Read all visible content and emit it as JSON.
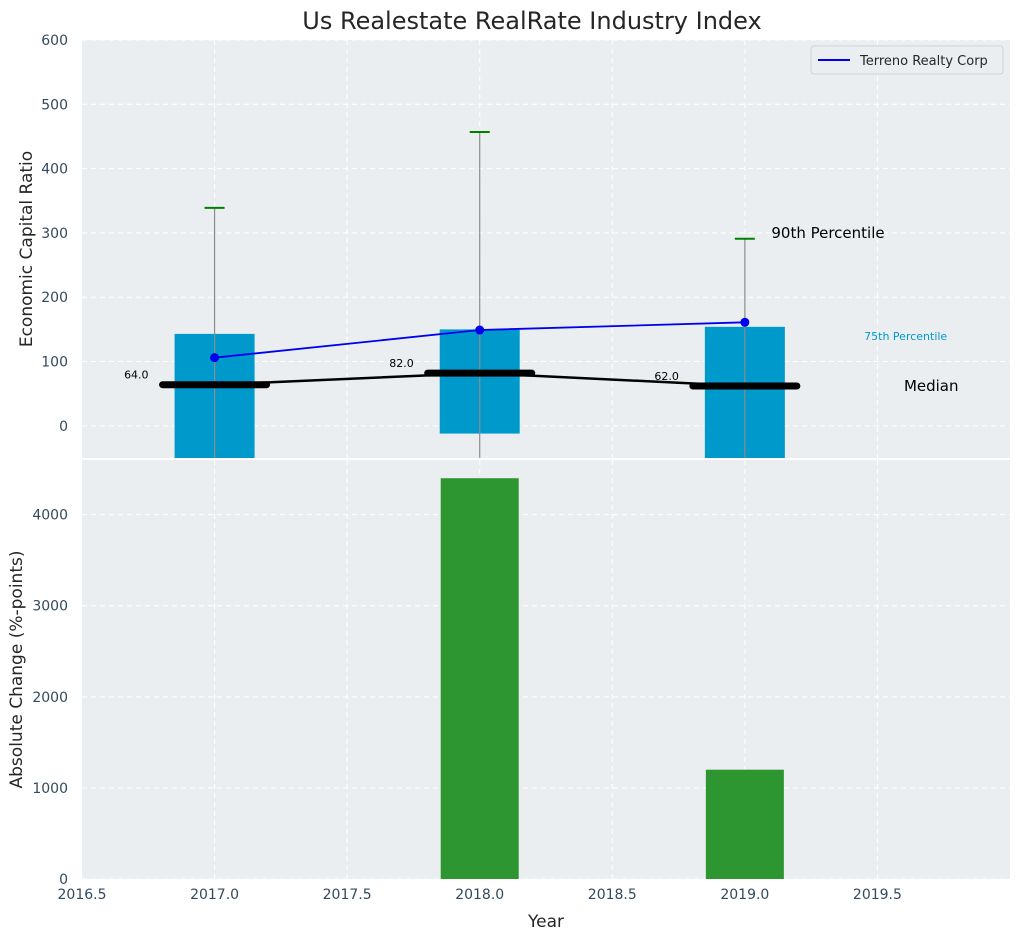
{
  "title": "Us Realestate RealRate Industry Index",
  "colors": {
    "plot_bg": "#eaeef0",
    "grid": "#ffffff",
    "quartile_bar": "#0099cc",
    "whisker": "#8c8c8c",
    "p90_cap": "#008000",
    "median": "#000000",
    "company_line": "#0000ee",
    "change_bar": "#2e9630",
    "tick_text": "#34495e"
  },
  "chart_data": [
    {
      "type": "bar",
      "panel": "top",
      "ylabel": "Economic Capital Ratio",
      "xlim": [
        2016.5,
        2020.0
      ],
      "ylim": [
        -50,
        600
      ],
      "yticks": [
        0,
        100,
        200,
        300,
        400,
        500,
        600
      ],
      "grid": true,
      "legend_position": "top-right",
      "x": [
        2017.0,
        2018.0,
        2019.0
      ],
      "p25": [
        -50,
        -12,
        -50
      ],
      "p75": [
        143,
        150,
        154
      ],
      "p90": [
        339,
        457,
        291
      ],
      "whisker_low": [
        -50,
        -50,
        -50
      ],
      "median": [
        64.0,
        82.0,
        62.0
      ],
      "median_labels": [
        "64.0",
        "82.0",
        "62.0"
      ],
      "series": [
        {
          "name": "Terreno Realty Corp",
          "values": [
            106,
            149,
            161
          ]
        }
      ],
      "annotations": {
        "p90": {
          "text": "90th Percentile",
          "x": 2019.1,
          "y": 300
        },
        "p75": {
          "text": "75th Percentile",
          "x": 2019.45,
          "y": 140
        },
        "median": {
          "text": "Median",
          "x": 2019.6,
          "y": 62
        }
      }
    },
    {
      "type": "bar",
      "panel": "bottom",
      "xlabel": "Year",
      "ylabel": "Absolute Change (%-points)",
      "xlim": [
        2016.5,
        2020.0
      ],
      "ylim": [
        0,
        4600
      ],
      "xticks": [
        2016.5,
        2017.0,
        2017.5,
        2018.0,
        2018.5,
        2019.0,
        2019.5
      ],
      "xtick_labels": [
        "2016.5",
        "2017.0",
        "2017.5",
        "2018.0",
        "2018.5",
        "2019.0",
        "2019.5"
      ],
      "yticks": [
        0,
        1000,
        2000,
        3000,
        4000
      ],
      "grid": true,
      "x": [
        2018.0,
        2019.0
      ],
      "values": [
        4400,
        1200
      ]
    }
  ]
}
